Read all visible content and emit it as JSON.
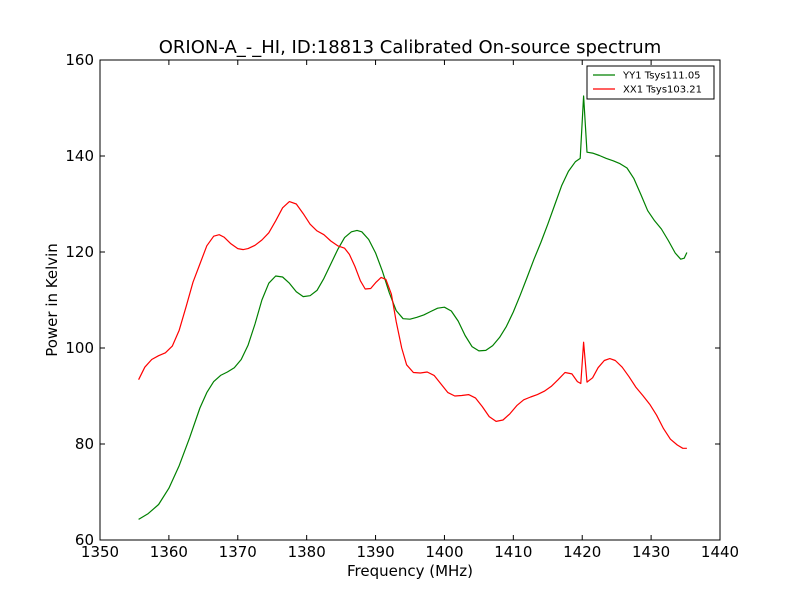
{
  "chart_data": {
    "type": "line",
    "title": "ORION-A_-_HI, ID:18813 Calibrated On-source spectrum",
    "xlabel": "Frequency (MHz)",
    "ylabel": "Power in Kelvin",
    "xlim": [
      1350,
      1440
    ],
    "ylim": [
      60,
      160
    ],
    "xticks": [
      1350,
      1360,
      1370,
      1380,
      1390,
      1400,
      1410,
      1420,
      1430,
      1440
    ],
    "yticks": [
      60,
      80,
      100,
      120,
      140,
      160
    ],
    "grid": false,
    "legend_position": "top-right",
    "series": [
      {
        "name": "YY1 Tsys111.05",
        "color": "#008000",
        "points": [
          [
            1355.6,
            64.3
          ],
          [
            1357.0,
            65.5
          ],
          [
            1358.5,
            67.4
          ],
          [
            1360.0,
            70.8
          ],
          [
            1361.5,
            75.5
          ],
          [
            1363.0,
            81.3
          ],
          [
            1364.5,
            87.5
          ],
          [
            1365.5,
            90.7
          ],
          [
            1366.5,
            93.0
          ],
          [
            1367.5,
            94.3
          ],
          [
            1368.5,
            95.0
          ],
          [
            1369.5,
            95.9
          ],
          [
            1370.5,
            97.6
          ],
          [
            1371.5,
            100.6
          ],
          [
            1372.5,
            105.0
          ],
          [
            1373.5,
            110.0
          ],
          [
            1374.5,
            113.5
          ],
          [
            1375.5,
            115.0
          ],
          [
            1376.5,
            114.8
          ],
          [
            1377.5,
            113.5
          ],
          [
            1378.5,
            111.7
          ],
          [
            1379.5,
            110.7
          ],
          [
            1380.5,
            110.9
          ],
          [
            1381.5,
            112.0
          ],
          [
            1382.5,
            114.5
          ],
          [
            1383.5,
            117.5
          ],
          [
            1384.5,
            120.5
          ],
          [
            1385.5,
            123.0
          ],
          [
            1386.5,
            124.2
          ],
          [
            1387.3,
            124.5
          ],
          [
            1388.0,
            124.2
          ],
          [
            1389.0,
            122.6
          ],
          [
            1390.0,
            119.8
          ],
          [
            1391.0,
            116.0
          ],
          [
            1392.0,
            111.5
          ],
          [
            1393.0,
            107.8
          ],
          [
            1394.0,
            106.1
          ],
          [
            1395.0,
            106.0
          ],
          [
            1396.0,
            106.4
          ],
          [
            1397.0,
            106.9
          ],
          [
            1398.0,
            107.6
          ],
          [
            1399.0,
            108.3
          ],
          [
            1400.0,
            108.5
          ],
          [
            1401.0,
            107.7
          ],
          [
            1402.0,
            105.6
          ],
          [
            1403.0,
            102.6
          ],
          [
            1404.0,
            100.3
          ],
          [
            1405.0,
            99.4
          ],
          [
            1406.0,
            99.5
          ],
          [
            1407.0,
            100.5
          ],
          [
            1408.0,
            102.2
          ],
          [
            1409.0,
            104.5
          ],
          [
            1410.0,
            107.5
          ],
          [
            1411.0,
            111.0
          ],
          [
            1412.0,
            114.7
          ],
          [
            1413.0,
            118.5
          ],
          [
            1414.0,
            122.0
          ],
          [
            1415.0,
            125.8
          ],
          [
            1416.0,
            129.8
          ],
          [
            1417.0,
            133.8
          ],
          [
            1418.0,
            136.8
          ],
          [
            1419.0,
            138.8
          ],
          [
            1419.7,
            139.5
          ],
          [
            1420.2,
            152.5
          ],
          [
            1420.7,
            140.8
          ],
          [
            1421.5,
            140.6
          ],
          [
            1422.5,
            140.1
          ],
          [
            1423.5,
            139.5
          ],
          [
            1424.5,
            139.0
          ],
          [
            1425.5,
            138.4
          ],
          [
            1426.5,
            137.5
          ],
          [
            1427.5,
            135.3
          ],
          [
            1428.5,
            132.0
          ],
          [
            1429.5,
            128.6
          ],
          [
            1430.5,
            126.5
          ],
          [
            1431.5,
            124.8
          ],
          [
            1432.5,
            122.4
          ],
          [
            1433.5,
            119.8
          ],
          [
            1434.3,
            118.5
          ],
          [
            1434.8,
            118.7
          ],
          [
            1435.2,
            119.9
          ]
        ]
      },
      {
        "name": "XX1 Tsys103.21",
        "color": "#ff0000",
        "points": [
          [
            1355.6,
            93.4
          ],
          [
            1356.5,
            96.0
          ],
          [
            1357.5,
            97.6
          ],
          [
            1358.5,
            98.4
          ],
          [
            1359.5,
            99.0
          ],
          [
            1360.5,
            100.4
          ],
          [
            1361.5,
            103.7
          ],
          [
            1362.5,
            108.6
          ],
          [
            1363.5,
            113.7
          ],
          [
            1364.5,
            117.5
          ],
          [
            1365.5,
            121.3
          ],
          [
            1366.5,
            123.3
          ],
          [
            1367.3,
            123.6
          ],
          [
            1368.0,
            123.1
          ],
          [
            1369.0,
            121.7
          ],
          [
            1370.0,
            120.7
          ],
          [
            1370.8,
            120.5
          ],
          [
            1371.5,
            120.7
          ],
          [
            1372.5,
            121.4
          ],
          [
            1373.5,
            122.5
          ],
          [
            1374.5,
            124.0
          ],
          [
            1375.5,
            126.5
          ],
          [
            1376.5,
            129.2
          ],
          [
            1377.5,
            130.5
          ],
          [
            1378.5,
            130.0
          ],
          [
            1379.5,
            128.0
          ],
          [
            1380.5,
            125.8
          ],
          [
            1381.5,
            124.4
          ],
          [
            1382.5,
            123.6
          ],
          [
            1383.5,
            122.3
          ],
          [
            1384.5,
            121.3
          ],
          [
            1385.5,
            120.8
          ],
          [
            1386.2,
            119.5
          ],
          [
            1387.0,
            117.0
          ],
          [
            1387.8,
            114.0
          ],
          [
            1388.5,
            112.3
          ],
          [
            1389.3,
            112.4
          ],
          [
            1390.0,
            113.6
          ],
          [
            1390.8,
            114.7
          ],
          [
            1391.5,
            114.3
          ],
          [
            1392.3,
            111.2
          ],
          [
            1393.0,
            105.5
          ],
          [
            1393.8,
            100.0
          ],
          [
            1394.5,
            96.5
          ],
          [
            1395.5,
            94.9
          ],
          [
            1396.5,
            94.8
          ],
          [
            1397.5,
            95.0
          ],
          [
            1398.5,
            94.3
          ],
          [
            1399.5,
            92.5
          ],
          [
            1400.5,
            90.7
          ],
          [
            1401.5,
            90.0
          ],
          [
            1402.5,
            90.1
          ],
          [
            1403.5,
            90.3
          ],
          [
            1404.5,
            89.6
          ],
          [
            1405.5,
            87.8
          ],
          [
            1406.5,
            85.7
          ],
          [
            1407.5,
            84.7
          ],
          [
            1408.5,
            85.0
          ],
          [
            1409.5,
            86.3
          ],
          [
            1410.5,
            88.0
          ],
          [
            1411.5,
            89.2
          ],
          [
            1412.5,
            89.8
          ],
          [
            1413.5,
            90.3
          ],
          [
            1414.5,
            91.0
          ],
          [
            1415.5,
            92.0
          ],
          [
            1416.5,
            93.4
          ],
          [
            1417.5,
            94.9
          ],
          [
            1418.5,
            94.6
          ],
          [
            1419.3,
            93.0
          ],
          [
            1419.8,
            92.6
          ],
          [
            1420.2,
            101.2
          ],
          [
            1420.7,
            92.9
          ],
          [
            1421.5,
            93.8
          ],
          [
            1422.3,
            95.9
          ],
          [
            1423.2,
            97.4
          ],
          [
            1424.0,
            97.8
          ],
          [
            1424.8,
            97.4
          ],
          [
            1425.8,
            96.0
          ],
          [
            1426.8,
            94.0
          ],
          [
            1427.8,
            91.8
          ],
          [
            1428.8,
            90.1
          ],
          [
            1429.8,
            88.3
          ],
          [
            1430.8,
            86.0
          ],
          [
            1431.8,
            83.2
          ],
          [
            1432.8,
            81.0
          ],
          [
            1433.8,
            79.8
          ],
          [
            1434.6,
            79.1
          ],
          [
            1435.2,
            79.1
          ]
        ]
      }
    ]
  }
}
